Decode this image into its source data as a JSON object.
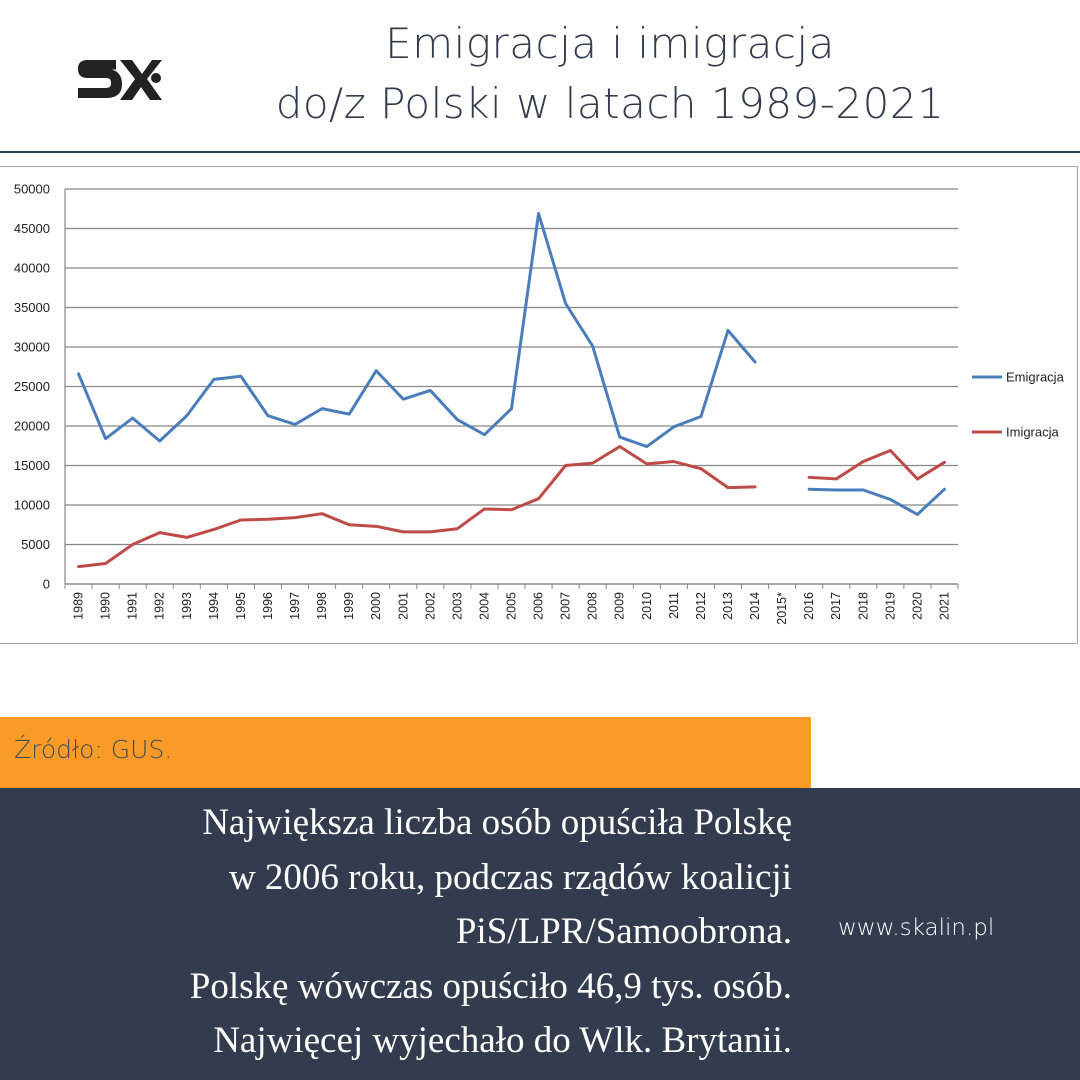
{
  "header": {
    "logo_text": "SX",
    "title_line1": "Emigracja i imigracja",
    "title_line2": "do/z Polski w latach 1989-2021"
  },
  "colors": {
    "navy": "#333c4e",
    "orange": "#fa9b28",
    "emigracja": "#4a7ebb",
    "imigracja": "#be4b48",
    "grid": "#868686"
  },
  "chart_data": {
    "type": "line",
    "categories": [
      "1989",
      "1990",
      "1991",
      "1992",
      "1993",
      "1994",
      "1995",
      "1996",
      "1997",
      "1998",
      "1999",
      "2000",
      "2001",
      "2002",
      "2003",
      "2004",
      "2005",
      "2006",
      "2007",
      "2008",
      "2009",
      "2010",
      "2011",
      "2012",
      "2013",
      "2014",
      "2015*",
      "2016",
      "2017",
      "2018",
      "2019",
      "2020",
      "2021"
    ],
    "ylim": [
      0,
      50000
    ],
    "y_ticks": [
      0,
      5000,
      10000,
      15000,
      20000,
      25000,
      30000,
      35000,
      40000,
      45000,
      50000
    ],
    "grid": true,
    "legend_position": "right",
    "series": [
      {
        "name": "Emigracja",
        "color": "#4a7ebb",
        "values": [
          26600,
          18400,
          21000,
          18100,
          21300,
          25900,
          26300,
          21300,
          20200,
          22200,
          21500,
          27000,
          23400,
          24500,
          20800,
          18900,
          22200,
          46900,
          35500,
          30100,
          18600,
          17400,
          19900,
          21200,
          32100,
          28100,
          null,
          12000,
          11900,
          11900,
          10700,
          8800,
          12000
        ]
      },
      {
        "name": "Imigracja",
        "color": "#be4b48",
        "values": [
          2200,
          2600,
          5000,
          6500,
          5900,
          6900,
          8100,
          8200,
          8400,
          8900,
          7500,
          7300,
          6600,
          6600,
          7000,
          9500,
          9400,
          10800,
          15000,
          15300,
          17400,
          15200,
          15500,
          14600,
          12200,
          12300,
          null,
          13500,
          13300,
          15500,
          16900,
          13300,
          15400
        ]
      }
    ]
  },
  "footer": {
    "source": "Źródło: GUS.",
    "caption_lines": [
      "Największa liczba osób opuściła Polskę",
      "w 2006 roku, podczas rządów koalicji",
      "PiS/LPR/Samoobrona.",
      "Polskę wówczas opuściło 46,9 tys. osób.",
      "Najwięcej wyjechało do Wlk. Brytanii."
    ],
    "website": "www.skalin.pl"
  }
}
